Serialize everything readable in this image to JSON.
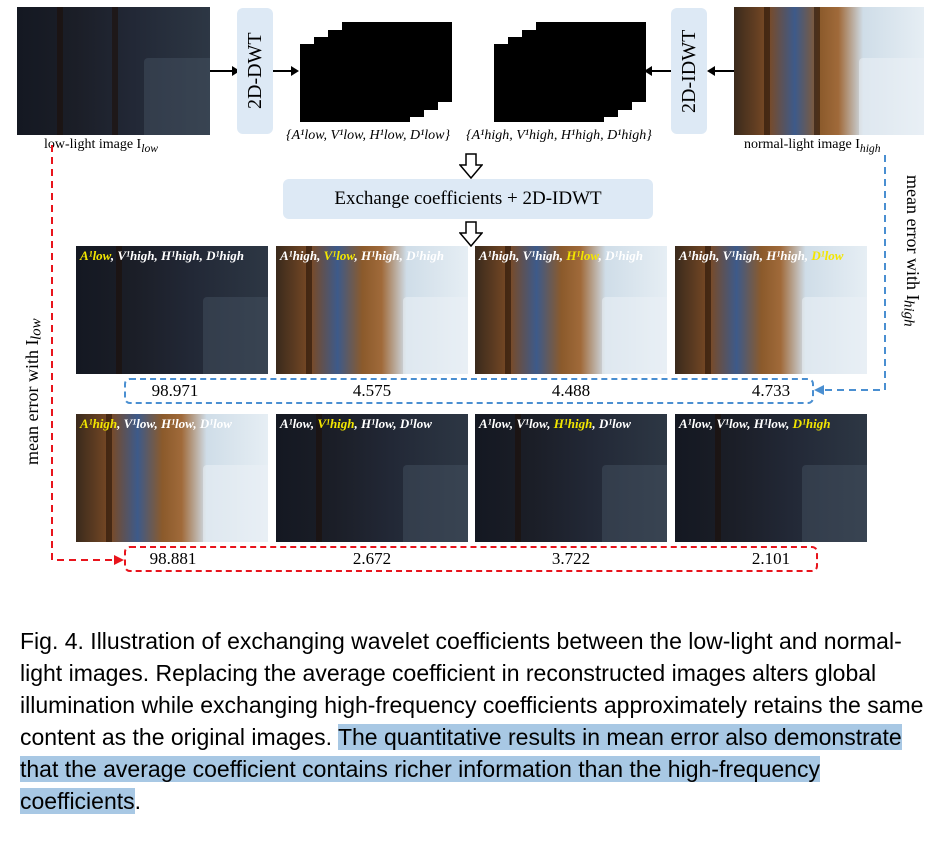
{
  "top": {
    "dwt_label": "2D-DWT",
    "idwt_label": "2D-IDWT",
    "low_caption": "low-light image I",
    "low_caption_sub": "low",
    "high_caption": "normal-light image I",
    "high_caption_sub": "high",
    "low_coeffs": "{A¹low, V¹low, H¹low, D¹low}",
    "high_coeffs": "{A¹high, V¹high, H¹high, D¹high}",
    "exchange_label": "Exchange coefficients + 2D-IDWT"
  },
  "side": {
    "left_label": "mean error with I",
    "left_sub": "low",
    "right_label": "mean error with I",
    "right_sub": "high"
  },
  "row1": {
    "labels": [
      {
        "a": "A¹low",
        "v": "V¹high",
        "h": "H¹high",
        "d": "D¹high"
      },
      {
        "a": "A¹high",
        "v": "V¹low",
        "h": "H¹high",
        "d": "D¹high"
      },
      {
        "a": "A¹high",
        "v": "V¹high",
        "h": "H¹low",
        "d": "D¹high"
      },
      {
        "a": "A¹high",
        "v": "V¹high",
        "h": "H¹high",
        "d": "D¹low"
      }
    ],
    "values": [
      "98.971",
      "4.575",
      "4.488",
      "4.733"
    ]
  },
  "row2": {
    "labels": [
      {
        "a": "A¹high",
        "v": "V¹low",
        "h": "H¹low",
        "d": "D¹low"
      },
      {
        "a": "A¹low",
        "v": "V¹high",
        "h": "H¹low",
        "d": "D¹low"
      },
      {
        "a": "A¹low",
        "v": "V¹low",
        "h": "H¹high",
        "d": "D¹low"
      },
      {
        "a": "A¹low",
        "v": "V¹low",
        "h": "H¹low",
        "d": "D¹high"
      }
    ],
    "values": [
      "98.881",
      "2.672",
      "3.722",
      "2.101"
    ]
  },
  "caption": {
    "lead": "Fig. 4.",
    "text": "  Illustration of exchanging wavelet coefficients between the low-light and normal-light images. Replacing the average coefficient in reconstructed images alters global illumination while exchanging high-frequency coefficients approximately retains the same content as the original images. ",
    "highlight": "The quantitative results in mean error also demonstrate that the average coefficient contains richer information than the high-frequency coefficients",
    "tail": "."
  },
  "colors": {
    "accent_red": "#e8141c",
    "accent_blue": "#4a8fd1",
    "box_bg": "#dde9f5",
    "highlight": "#a8c8e4"
  }
}
